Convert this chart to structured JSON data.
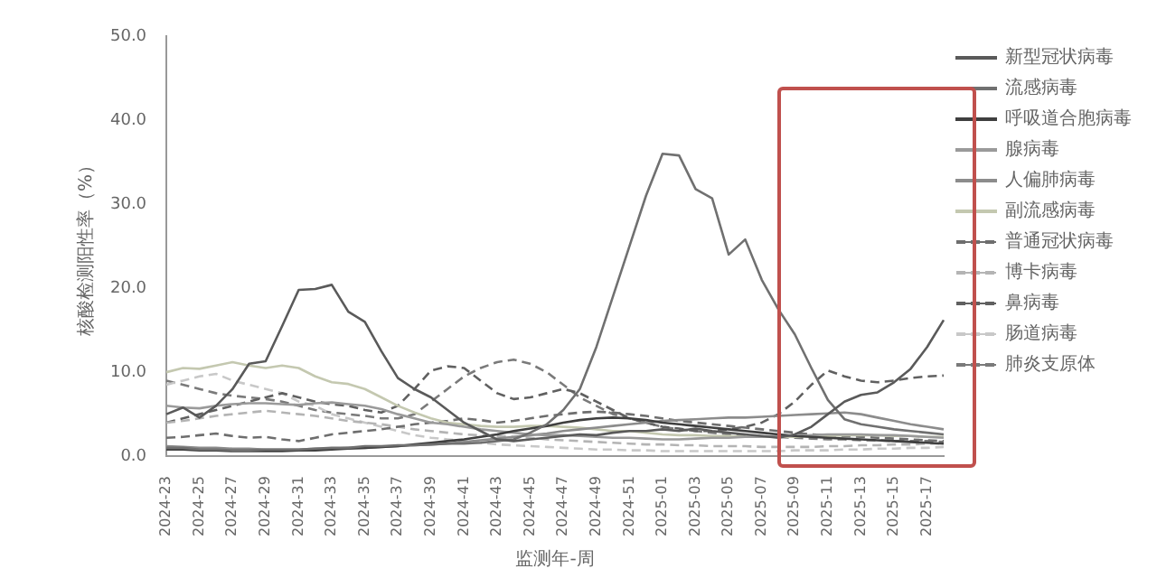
{
  "chart_data": {
    "type": "line",
    "xlabel": "监测年-周",
    "ylabel": "核酸检测阳性率（%）",
    "categories": [
      "2024-23",
      null,
      "2024-25",
      null,
      "2024-27",
      null,
      "2024-29",
      null,
      "2024-31",
      null,
      "2024-33",
      null,
      "2024-35",
      null,
      "2024-37",
      null,
      "2024-39",
      null,
      "2024-41",
      null,
      "2024-43",
      null,
      "2024-45",
      null,
      "2024-47",
      null,
      "2024-49",
      null,
      "2024-51",
      null,
      "2025-01",
      null,
      "2025-03",
      null,
      "2025-05",
      null,
      "2025-07",
      null,
      "2025-09",
      null,
      "2025-11",
      null,
      "2025-13",
      null,
      "2025-15",
      null,
      "2025-17",
      null
    ],
    "ylim": [
      0,
      50
    ],
    "yticks": [
      {
        "value": 0,
        "label": "0.0"
      },
      {
        "value": 10,
        "label": "10.0"
      },
      {
        "value": 20,
        "label": "20.0"
      },
      {
        "value": 30,
        "label": "30.0"
      },
      {
        "value": 40,
        "label": "40.0"
      },
      {
        "value": 50,
        "label": "50.0"
      }
    ],
    "grid": false,
    "legend": "right",
    "series": [
      {
        "name": "新型冠状病毒",
        "color": "#5a5a5a",
        "line_style": "solid",
        "values": [
          5,
          5.8,
          4.6,
          6,
          8,
          11,
          11.3,
          15.5,
          19.8,
          19.9,
          20.4,
          17.2,
          16,
          12.5,
          9.3,
          8,
          7,
          5.5,
          4,
          3,
          2,
          1.8,
          2,
          2.2,
          2.4,
          2.6,
          2.5,
          2.8,
          3,
          3,
          3.2,
          3,
          3.3,
          3,
          2.8,
          2.6,
          2.4,
          2.2,
          2.6,
          3.5,
          5,
          6.5,
          7.3,
          7.6,
          8.8,
          10.4,
          13,
          16.2
        ]
      },
      {
        "name": "流感病毒",
        "color": "#707070",
        "line_style": "solid",
        "values": [
          1,
          1,
          0.8,
          0.8,
          0.7,
          0.7,
          0.8,
          0.8,
          0.8,
          0.9,
          1,
          1,
          1.2,
          1.2,
          1.3,
          1.3,
          1.4,
          1.5,
          1.5,
          1.6,
          1.8,
          2,
          2.8,
          3.8,
          5.5,
          8,
          13,
          19,
          25,
          31,
          36,
          35.8,
          31.8,
          30.7,
          24,
          25.8,
          21,
          17.5,
          14.5,
          10.5,
          6.7,
          4.4,
          3.8,
          3.5,
          3.2,
          3,
          2.8,
          2.6
        ]
      },
      {
        "name": "呼吸道合胞病毒",
        "color": "#3f3f3f",
        "line_style": "solid",
        "values": [
          0.8,
          0.8,
          0.7,
          0.7,
          0.6,
          0.6,
          0.6,
          0.6,
          0.7,
          0.7,
          0.8,
          0.9,
          1,
          1.1,
          1.2,
          1.4,
          1.6,
          1.8,
          2,
          2.3,
          2.6,
          3,
          3.3,
          3.6,
          4,
          4.3,
          4.5,
          4.6,
          4.5,
          4.3,
          4,
          3.8,
          3.6,
          3.4,
          3.2,
          3,
          2.8,
          2.6,
          2.4,
          2.3,
          2.2,
          2.1,
          2,
          1.9,
          1.8,
          1.7,
          1.6,
          1.5
        ]
      },
      {
        "name": "腺病毒",
        "color": "#9a9a9a",
        "line_style": "solid",
        "values": [
          6,
          5.8,
          5.7,
          6,
          6.2,
          6.3,
          6.3,
          6.2,
          6.1,
          6.3,
          6.4,
          6.2,
          6,
          5.6,
          5,
          4.5,
          4,
          3.8,
          3.5,
          3.2,
          3,
          2.8,
          2.6,
          2.5,
          2.5,
          2.4,
          2.3,
          2.2,
          2.2,
          2.1,
          2,
          2,
          2.1,
          2.2,
          2.2,
          2.3,
          2.3,
          2.4,
          2.4,
          2.5,
          2.6,
          2.6,
          2.6,
          2.5,
          2.5,
          2.4,
          2.3,
          2.2
        ]
      },
      {
        "name": "人偏肺病毒",
        "color": "#8c8c8c",
        "line_style": "solid",
        "values": [
          1.2,
          1.1,
          1,
          1,
          0.9,
          0.9,
          0.8,
          0.8,
          0.8,
          0.9,
          0.9,
          1,
          1,
          1.1,
          1.2,
          1.3,
          1.4,
          1.5,
          1.7,
          1.9,
          2.1,
          2.3,
          2.5,
          2.7,
          3,
          3.2,
          3.4,
          3.6,
          3.8,
          4,
          4.2,
          4.3,
          4.4,
          4.5,
          4.6,
          4.6,
          4.7,
          4.8,
          4.9,
          5,
          5.1,
          5.2,
          5,
          4.6,
          4.2,
          3.8,
          3.5,
          3.2
        ]
      },
      {
        "name": "副流感病毒",
        "color": "#c4c8b0",
        "line_style": "solid",
        "values": [
          10,
          10.5,
          10.4,
          10.8,
          11.2,
          10.8,
          10.5,
          10.8,
          10.5,
          9.5,
          8.8,
          8.6,
          8,
          7,
          6,
          5.2,
          4.5,
          4,
          3.8,
          3.6,
          3.5,
          3.5,
          3.6,
          3.6,
          3.5,
          3.4,
          3.2,
          3,
          3,
          2.8,
          2.6,
          2.5,
          2.5,
          2.4,
          2.4,
          2.3,
          2.3,
          2.3,
          2.3,
          2.4,
          2.4,
          2.5,
          2.5,
          2.5,
          2.4,
          2.4,
          2.3,
          2.3
        ]
      },
      {
        "name": "普通冠状病毒",
        "color": "#6e6e6e",
        "line_style": "dashed",
        "values": [
          2.2,
          2.3,
          2.5,
          2.7,
          2.4,
          2.2,
          2.3,
          2,
          1.8,
          2.2,
          2.6,
          2.8,
          3,
          3.2,
          3.5,
          3.8,
          4,
          4.2,
          4.5,
          4.3,
          4,
          4.2,
          4.5,
          4.8,
          5,
          5.2,
          5.3,
          5.2,
          5,
          4.8,
          4.5,
          4.2,
          4,
          3.8,
          3.6,
          3.4,
          3.2,
          3,
          2.8,
          2.6,
          2.5,
          2.4,
          2.3,
          2.2,
          2.1,
          2,
          1.9,
          1.8
        ]
      },
      {
        "name": "博卡病毒",
        "color": "#b4b4b4",
        "line_style": "dashed",
        "values": [
          4,
          4.2,
          4.5,
          4.8,
          5,
          5.2,
          5.4,
          5.2,
          5,
          4.8,
          4.5,
          4.2,
          4,
          3.8,
          3.5,
          3.2,
          3,
          2.8,
          2.6,
          2.5,
          2.4,
          2.3,
          2.2,
          2,
          1.9,
          1.8,
          1.7,
          1.6,
          1.5,
          1.4,
          1.4,
          1.3,
          1.3,
          1.2,
          1.2,
          1.2,
          1.1,
          1.1,
          1.1,
          1.1,
          1.2,
          1.2,
          1.3,
          1.3,
          1.4,
          1.4,
          1.5,
          1.5
        ]
      },
      {
        "name": "鼻病毒",
        "color": "#606060",
        "line_style": "dashed",
        "values": [
          4,
          4.5,
          5,
          5.5,
          6,
          6.5,
          7,
          7.5,
          7,
          6.5,
          6.2,
          6,
          5.5,
          5.2,
          6,
          8,
          10.2,
          10.7,
          10.5,
          9,
          7.5,
          6.8,
          7,
          7.5,
          8,
          7.5,
          6.5,
          5.5,
          4.5,
          4,
          3.5,
          3.3,
          3,
          3,
          3.2,
          3.5,
          4,
          5,
          6.5,
          8.5,
          10.2,
          9.5,
          9,
          8.8,
          9,
          9.3,
          9.5,
          9.6
        ]
      },
      {
        "name": "肠道病毒",
        "color": "#c8c8c8",
        "line_style": "dashed",
        "values": [
          8.5,
          9,
          9.5,
          9.8,
          9,
          8.5,
          8,
          7.5,
          6.5,
          6,
          5,
          4.5,
          4,
          3.5,
          3,
          2.5,
          2.2,
          2,
          1.8,
          1.6,
          1.4,
          1.3,
          1.2,
          1.1,
          1,
          0.9,
          0.8,
          0.8,
          0.7,
          0.7,
          0.6,
          0.6,
          0.6,
          0.6,
          0.6,
          0.6,
          0.6,
          0.6,
          0.7,
          0.7,
          0.7,
          0.8,
          0.8,
          0.9,
          0.9,
          1,
          1,
          1.1
        ]
      },
      {
        "name": "肺炎支原体",
        "color": "#7a7a7a",
        "line_style": "dashed",
        "values": [
          9,
          8.5,
          8,
          7.5,
          7.2,
          7,
          6.8,
          6.5,
          6,
          5.5,
          5.2,
          5,
          4.8,
          4.5,
          4.5,
          5,
          6.5,
          8,
          9.5,
          10.5,
          11.2,
          11.5,
          11,
          10,
          8.5,
          7,
          6,
          5,
          4.5,
          4,
          3.5,
          3.2,
          3,
          2.8,
          2.6,
          2.5,
          2.4,
          2.3,
          2.2,
          2.1,
          2,
          2,
          1.9,
          1.9,
          1.8,
          1.8,
          1.8,
          1.7
        ]
      }
    ]
  }
}
